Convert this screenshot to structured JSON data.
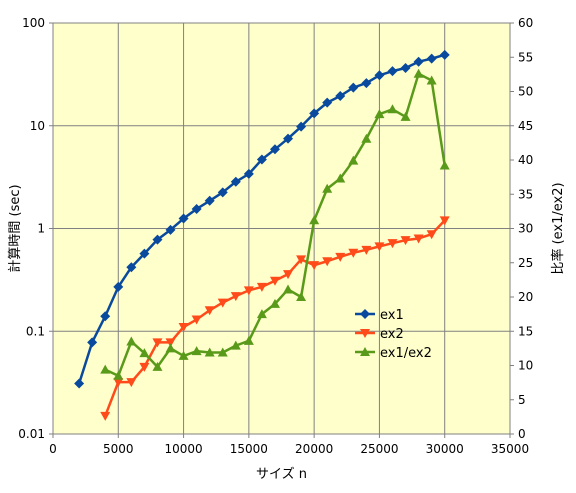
{
  "chart_data": {
    "type": "line",
    "title": "",
    "xlabel": "サイズ n",
    "ylabel_left": "計算時間 (sec)",
    "ylabel_right": "比率 (ex1/ex2)",
    "xlim": [
      0,
      35000
    ],
    "x_ticks": [
      "0",
      "5000",
      "10000",
      "15000",
      "20000",
      "25000",
      "30000",
      "35000"
    ],
    "y_left_scale": "log",
    "y_left_lim": [
      0.01,
      100
    ],
    "y_left_ticks": [
      "0.01",
      "0.1",
      "1",
      "10",
      "100"
    ],
    "y_right_lim": [
      0,
      60
    ],
    "y_right_ticks": [
      "0",
      "5",
      "10",
      "15",
      "20",
      "25",
      "30",
      "35",
      "40",
      "45",
      "50",
      "55",
      "60"
    ],
    "plot_background": "#ffffcc",
    "grid": true,
    "legend_position": "right-middle",
    "series": [
      {
        "name": "ex1",
        "axis": "left",
        "color": "#0a4a9e",
        "marker": "diamond",
        "x": [
          2000,
          3000,
          4000,
          5000,
          6000,
          7000,
          8000,
          9000,
          10000,
          11000,
          12000,
          13000,
          14000,
          15000,
          16000,
          17000,
          18000,
          19000,
          20000,
          21000,
          22000,
          23000,
          24000,
          25000,
          26000,
          27000,
          28000,
          29000,
          30000
        ],
        "values": [
          0.031,
          0.078,
          0.14,
          0.27,
          0.42,
          0.57,
          0.78,
          0.97,
          1.25,
          1.55,
          1.86,
          2.25,
          2.85,
          3.4,
          4.7,
          5.9,
          7.5,
          9.8,
          13.2,
          16.8,
          19.5,
          23.5,
          26.0,
          31.0,
          34.0,
          36.5,
          42.0,
          45.0,
          49.0
        ]
      },
      {
        "name": "ex2",
        "axis": "left",
        "color": "#ff4a1a",
        "marker": "triangle-down",
        "x": [
          4000,
          5000,
          6000,
          7000,
          8000,
          9000,
          10000,
          11000,
          12000,
          13000,
          14000,
          15000,
          16000,
          17000,
          18000,
          19000,
          20000,
          21000,
          22000,
          23000,
          24000,
          25000,
          26000,
          27000,
          28000,
          29000,
          30000
        ],
        "values": [
          0.015,
          0.032,
          0.032,
          0.045,
          0.078,
          0.078,
          0.11,
          0.13,
          0.16,
          0.19,
          0.22,
          0.25,
          0.27,
          0.31,
          0.36,
          0.5,
          0.44,
          0.48,
          0.53,
          0.58,
          0.62,
          0.67,
          0.72,
          0.77,
          0.8,
          0.88,
          1.2
        ]
      },
      {
        "name": "ex1/ex2",
        "axis": "right",
        "color": "#5a9a1a",
        "marker": "triangle-up",
        "x": [
          4000,
          5000,
          6000,
          7000,
          8000,
          9000,
          10000,
          11000,
          12000,
          13000,
          14000,
          15000,
          16000,
          17000,
          18000,
          19000,
          20000,
          21000,
          22000,
          23000,
          24000,
          25000,
          26000,
          27000,
          28000,
          29000,
          30000
        ],
        "values": [
          9.4,
          8.5,
          13.5,
          11.8,
          9.8,
          12.5,
          11.4,
          12.1,
          11.9,
          11.9,
          12.9,
          13.6,
          17.5,
          19.0,
          21.1,
          20.0,
          31.2,
          35.8,
          37.3,
          39.9,
          43.1,
          46.7,
          47.4,
          46.3,
          52.6,
          51.6,
          39.2
        ]
      }
    ]
  }
}
